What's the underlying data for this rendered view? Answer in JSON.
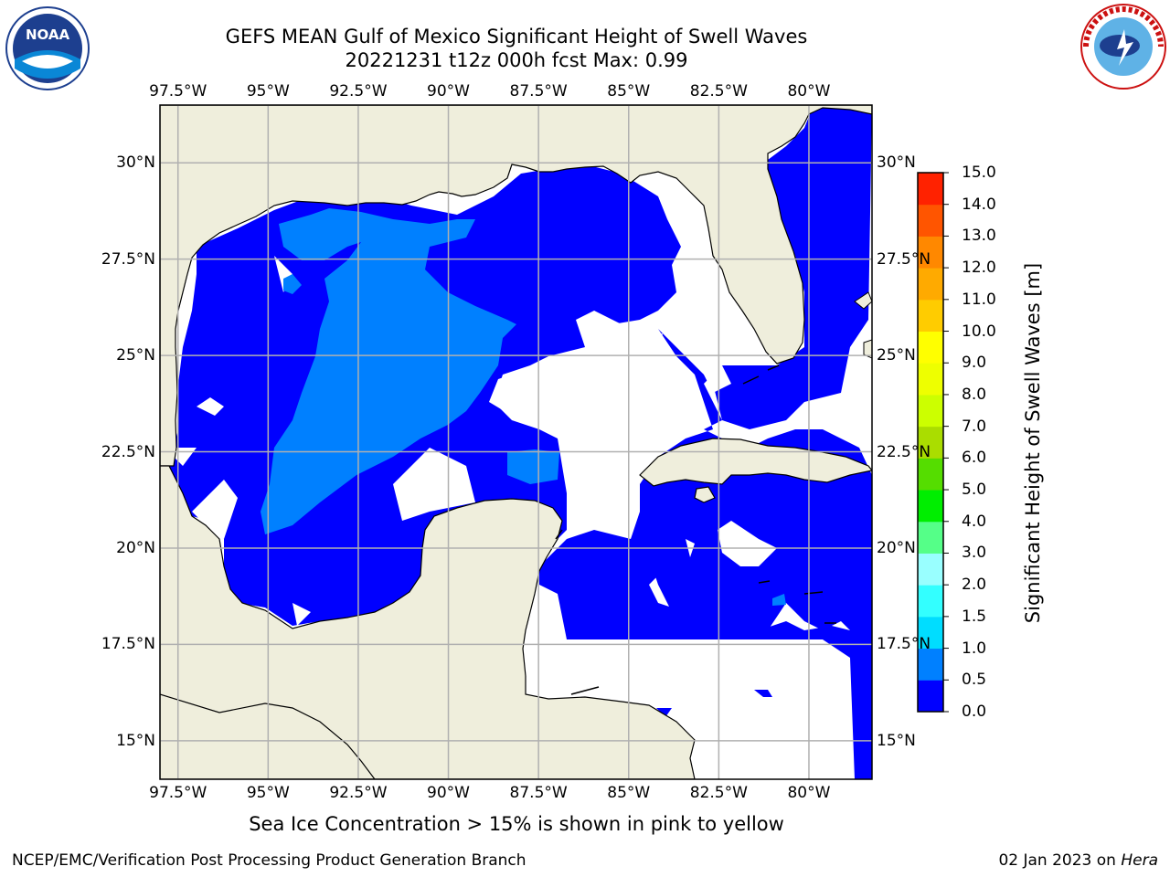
{
  "header": {
    "title_line1": "GEFS MEAN Gulf of Mexico Significant Height of Swell Waves",
    "title_line2": "20221231 t12z 000h fcst   Max: 0.99"
  },
  "map": {
    "lon_labels": [
      "97.5°W",
      "95°W",
      "92.5°W",
      "90°W",
      "87.5°W",
      "85°W",
      "82.5°W",
      "80°W"
    ],
    "lon_values": [
      -97.5,
      -95,
      -92.5,
      -90,
      -87.5,
      -85,
      -82.5,
      -80
    ],
    "lat_labels": [
      "30°N",
      "27.5°N",
      "25°N",
      "22.5°N",
      "20°N",
      "17.5°N",
      "15°N"
    ],
    "lat_values": [
      30,
      27.5,
      25,
      22.5,
      20,
      17.5,
      15
    ],
    "extent": {
      "lon_min": -98,
      "lon_max": -78.25,
      "lat_min": 14,
      "lat_max": 31.5
    },
    "colors": {
      "land": "#efeedc",
      "ocean_low": "#0000ff",
      "ocean_mid": "#0080ff",
      "grid": "#b0b0b0",
      "coast": "#000000"
    }
  },
  "colorbar": {
    "label": "Significant Height of Swell Waves [m]",
    "ticks": [
      "0.0",
      "0.5",
      "1.0",
      "1.5",
      "2.0",
      "3.0",
      "4.0",
      "5.0",
      "6.0",
      "7.0",
      "8.0",
      "9.0",
      "10.0",
      "11.0",
      "12.0",
      "13.0",
      "14.0",
      "15.0"
    ],
    "colors": [
      "#0000ff",
      "#0080ff",
      "#00ddff",
      "#33ffff",
      "#99ffff",
      "#55ff88",
      "#00ee00",
      "#55dd00",
      "#aadd00",
      "#ccff00",
      "#eeff00",
      "#ffff00",
      "#ffcc00",
      "#ffaa00",
      "#ff8800",
      "#ff5500",
      "#ff2200"
    ]
  },
  "footer": {
    "sea_ice_note": "Sea Ice Concentration > 15% is shown in pink to yellow",
    "left": "NCEP/EMC/Verification Post Processing Product Generation Branch",
    "right_date": "02 Jan 2023 on",
    "right_host": "Hera"
  },
  "logos": {
    "noaa": "NOAA",
    "nws": "NATIONAL WEATHER SERVICE"
  }
}
